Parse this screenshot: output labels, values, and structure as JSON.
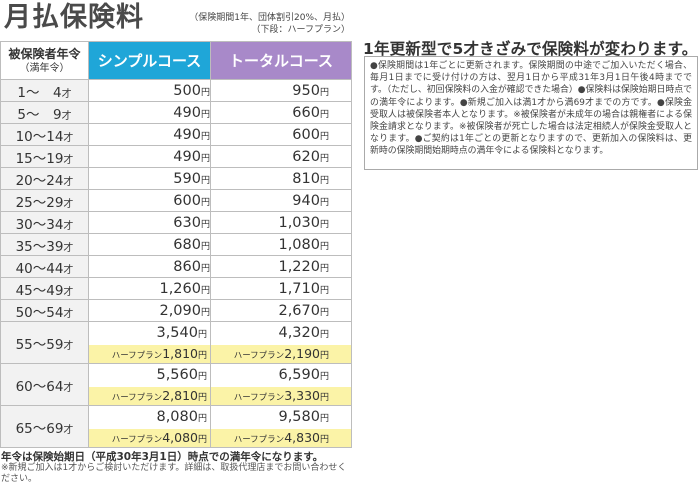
{
  "title": "月払保険料",
  "title_note_line1": "（保険期間1年、団体割引20%、月払）",
  "title_note_line2": "（下段：ハーフプラン）",
  "table": {
    "header_age_line1": "被保険者年令",
    "header_age_line2": "（満年令）",
    "header_simple": "シンプルコース",
    "header_total": "トータルコース",
    "sai": "才",
    "yen": "円",
    "half_label": "ハーフプラン",
    "rows": [
      {
        "age": "1〜　4",
        "simple": "500",
        "total": "950"
      },
      {
        "age": "5〜　9",
        "simple": "490",
        "total": "660"
      },
      {
        "age": "10〜14",
        "simple": "490",
        "total": "600"
      },
      {
        "age": "15〜19",
        "simple": "490",
        "total": "620"
      },
      {
        "age": "20〜24",
        "simple": "590",
        "total": "810"
      },
      {
        "age": "25〜29",
        "simple": "600",
        "total": "940"
      },
      {
        "age": "30〜34",
        "simple": "630",
        "total": "1,030"
      },
      {
        "age": "35〜39",
        "simple": "680",
        "total": "1,080"
      },
      {
        "age": "40〜44",
        "simple": "860",
        "total": "1,220"
      },
      {
        "age": "45〜49",
        "simple": "1,260",
        "total": "1,710"
      },
      {
        "age": "50〜54",
        "simple": "2,090",
        "total": "2,670"
      }
    ],
    "split_rows": [
      {
        "age": "55〜59",
        "simple": "3,540",
        "total": "4,320",
        "simple_half": "1,810",
        "total_half": "2,190"
      },
      {
        "age": "60〜64",
        "simple": "5,560",
        "total": "6,590",
        "simple_half": "2,810",
        "total_half": "3,330"
      },
      {
        "age": "65〜69",
        "simple": "8,080",
        "total": "9,580",
        "simple_half": "4,080",
        "total_half": "4,830"
      }
    ]
  },
  "footer_note1": "年令は保険始期日（平成30年3月1日）時点での満年令になります。",
  "footer_note2": "※新規ご加入は1才からご検討いただけます。詳細は、取扱代理店までお問い合わせください。",
  "right_heading": "1年更新型で5才きざみで保険料が変わります。",
  "right_body": "●保険期間は1年ごとに更新されます。保険期間の中途でご加入いただく場合、毎月1日までに受け付けの方は、翌月1日から平成31年3月1日午後4時までです。（ただし、初回保険料の入金が確認できた場合）●保険料は保険始期日時点での満年令によります。●新規ご加入は満1才から満69才までの方です。●保険金受取人は被保険者本人となります。※被保険者が未成年の場合は親権者による保険金請求となります。※被保険者が死亡した場合は法定相続人が保険金受取人となります。●ご契約は1年ごとの更新となりますので、更新加入の保険料は、更新時の保険期間始期時点の満年令による保険料となります。"
}
